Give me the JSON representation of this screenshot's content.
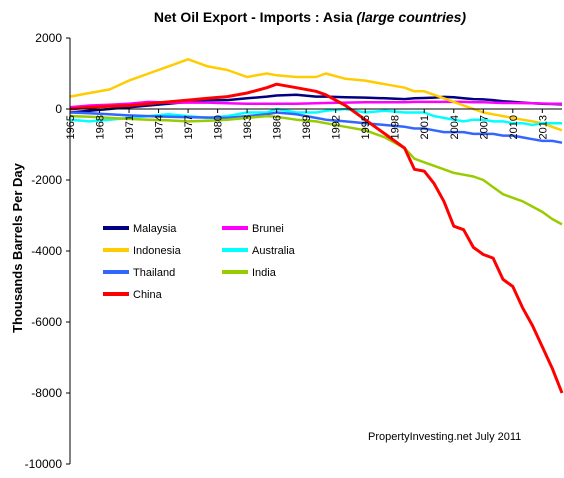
{
  "chart_data": {
    "type": "line",
    "title": "Net Oil Export - Imports : Asia",
    "title_suffix": "(large countries)",
    "xlabel": "",
    "ylabel": "Thousands Barrels Per Day",
    "ylim": [
      -10000,
      2000
    ],
    "yticks": [
      2000,
      0,
      -2000,
      -4000,
      -6000,
      -8000,
      -10000
    ],
    "xlim": [
      1965,
      2015
    ],
    "xticks": [
      1965,
      1968,
      1971,
      1974,
      1977,
      1980,
      1983,
      1986,
      1989,
      1992,
      1995,
      1998,
      2001,
      2004,
      2007,
      2010,
      2013
    ],
    "grid": false,
    "legend_placement": "left-center",
    "note": "PropertyInvesting.net  July 2011",
    "x": [
      1965,
      1967,
      1969,
      1971,
      1973,
      1975,
      1977,
      1979,
      1981,
      1983,
      1985,
      1986,
      1988,
      1990,
      1991,
      1993,
      1995,
      1997,
      1999,
      2000,
      2001,
      2002,
      2003,
      2004,
      2005,
      2006,
      2007,
      2008,
      2009,
      2010,
      2011,
      2012,
      2013,
      2014,
      2015
    ],
    "series": [
      {
        "name": "Malaysia",
        "color": "#000080",
        "values": [
          -100,
          -50,
          0,
          50,
          100,
          150,
          200,
          250,
          250,
          300,
          350,
          380,
          400,
          350,
          350,
          330,
          320,
          300,
          280,
          300,
          310,
          320,
          340,
          330,
          300,
          280,
          270,
          250,
          220,
          200,
          180,
          160,
          150,
          140,
          130
        ]
      },
      {
        "name": "Brunei",
        "color": "#ff00ff",
        "values": [
          50,
          100,
          120,
          150,
          200,
          180,
          180,
          180,
          160,
          150,
          150,
          150,
          150,
          160,
          170,
          180,
          190,
          190,
          190,
          200,
          200,
          200,
          200,
          200,
          200,
          190,
          190,
          180,
          170,
          170,
          165,
          160,
          155,
          150,
          150
        ]
      },
      {
        "name": "Indonesia",
        "color": "#ffcc00",
        "values": [
          350,
          450,
          550,
          800,
          1000,
          1200,
          1400,
          1200,
          1100,
          900,
          1000,
          950,
          900,
          900,
          1000,
          850,
          800,
          700,
          600,
          500,
          500,
          400,
          300,
          200,
          100,
          0,
          -100,
          -150,
          -200,
          -250,
          -300,
          -350,
          -400,
          -500,
          -600
        ]
      },
      {
        "name": "Australia",
        "color": "#00ffff",
        "values": [
          -300,
          -350,
          -300,
          -250,
          -200,
          -150,
          -200,
          -250,
          -200,
          -100,
          -100,
          0,
          -100,
          -100,
          -50,
          0,
          -100,
          -50,
          -100,
          -100,
          -100,
          -200,
          -250,
          -300,
          -350,
          -300,
          -300,
          -350,
          -350,
          -400,
          -400,
          -450,
          -400,
          -400,
          -400
        ]
      },
      {
        "name": "Thailand",
        "color": "#3366ff",
        "values": [
          -100,
          -120,
          -150,
          -180,
          -200,
          -220,
          -230,
          -240,
          -250,
          -200,
          -150,
          -100,
          -150,
          -250,
          -300,
          -350,
          -400,
          -450,
          -500,
          -550,
          -550,
          -600,
          -650,
          -650,
          -650,
          -700,
          -700,
          -700,
          -750,
          -750,
          -800,
          -850,
          -900,
          -900,
          -950
        ]
      },
      {
        "name": "India",
        "color": "#99cc00",
        "values": [
          -200,
          -220,
          -250,
          -280,
          -300,
          -320,
          -350,
          -330,
          -300,
          -250,
          -200,
          -220,
          -300,
          -350,
          -400,
          -500,
          -600,
          -800,
          -1100,
          -1400,
          -1500,
          -1600,
          -1700,
          -1800,
          -1850,
          -1900,
          -2000,
          -2200,
          -2400,
          -2500,
          -2600,
          -2750,
          -2900,
          -3100,
          -3250
        ]
      },
      {
        "name": "China",
        "color": "#ff0000",
        "values": [
          0,
          50,
          80,
          100,
          150,
          200,
          250,
          300,
          350,
          450,
          600,
          700,
          600,
          500,
          400,
          100,
          -300,
          -700,
          -1100,
          -1700,
          -1750,
          -2100,
          -2600,
          -3300,
          -3400,
          -3900,
          -4100,
          -4200,
          -4800,
          -5000,
          -5600,
          -6100,
          -6700,
          -7300,
          -8000
        ]
      }
    ]
  }
}
